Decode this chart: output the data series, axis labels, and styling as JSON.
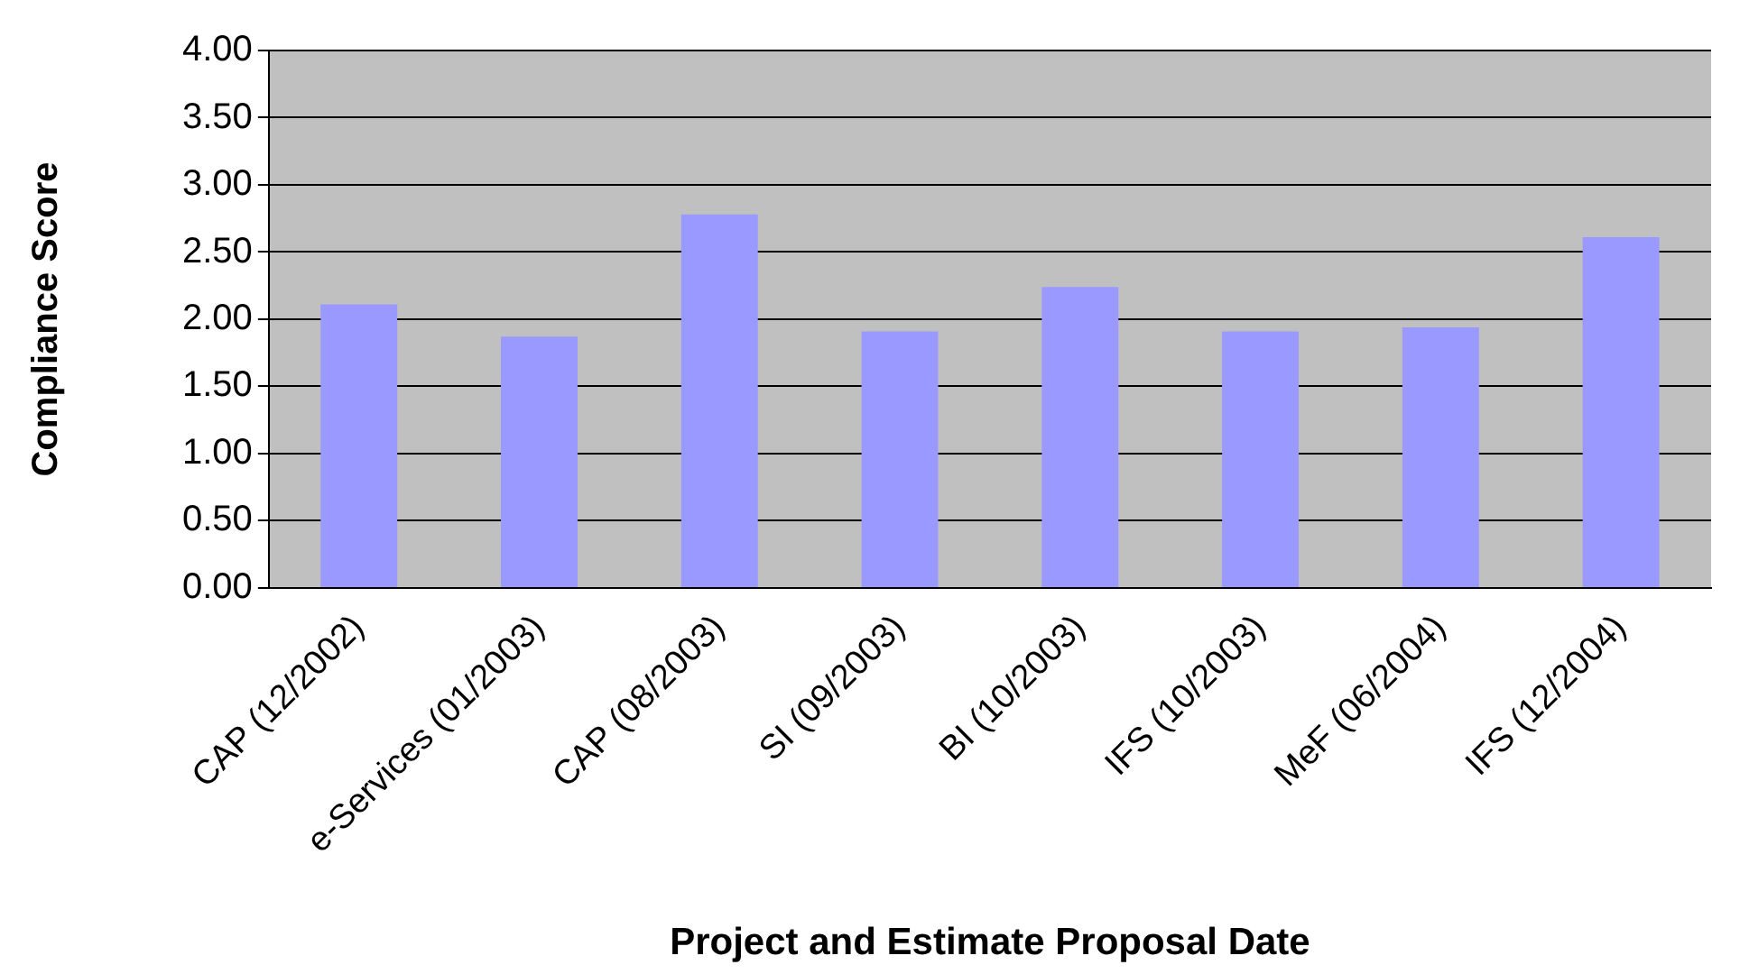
{
  "chart_data": {
    "type": "bar",
    "xlabel": "Project and Estimate Proposal Date",
    "ylabel": "Compliance Score",
    "categories": [
      "CAP (12/2002)",
      "e-Services (01/2003)",
      "CAP (08/2003)",
      "SI (09/2003)",
      "BI (10/2003)",
      "IFS (10/2003)",
      "MeF (06/2004)",
      "IFS (12/2004)"
    ],
    "values": [
      2.11,
      1.87,
      2.78,
      1.91,
      2.24,
      1.91,
      1.94,
      2.61
    ],
    "color": "#9999ff",
    "ylim": [
      0,
      4
    ],
    "yticks": [
      {
        "value": 0,
        "label": "0.00"
      },
      {
        "value": 0.5,
        "label": "0.50"
      },
      {
        "value": 1,
        "label": "1.00"
      },
      {
        "value": 1.5,
        "label": "1.50"
      },
      {
        "value": 2,
        "label": "2.00"
      },
      {
        "value": 2.5,
        "label": "2.50"
      },
      {
        "value": 3,
        "label": "3.00"
      },
      {
        "value": 3.5,
        "label": "3.50"
      },
      {
        "value": 4,
        "label": "4.00"
      }
    ],
    "grid": "y",
    "legend": false
  }
}
